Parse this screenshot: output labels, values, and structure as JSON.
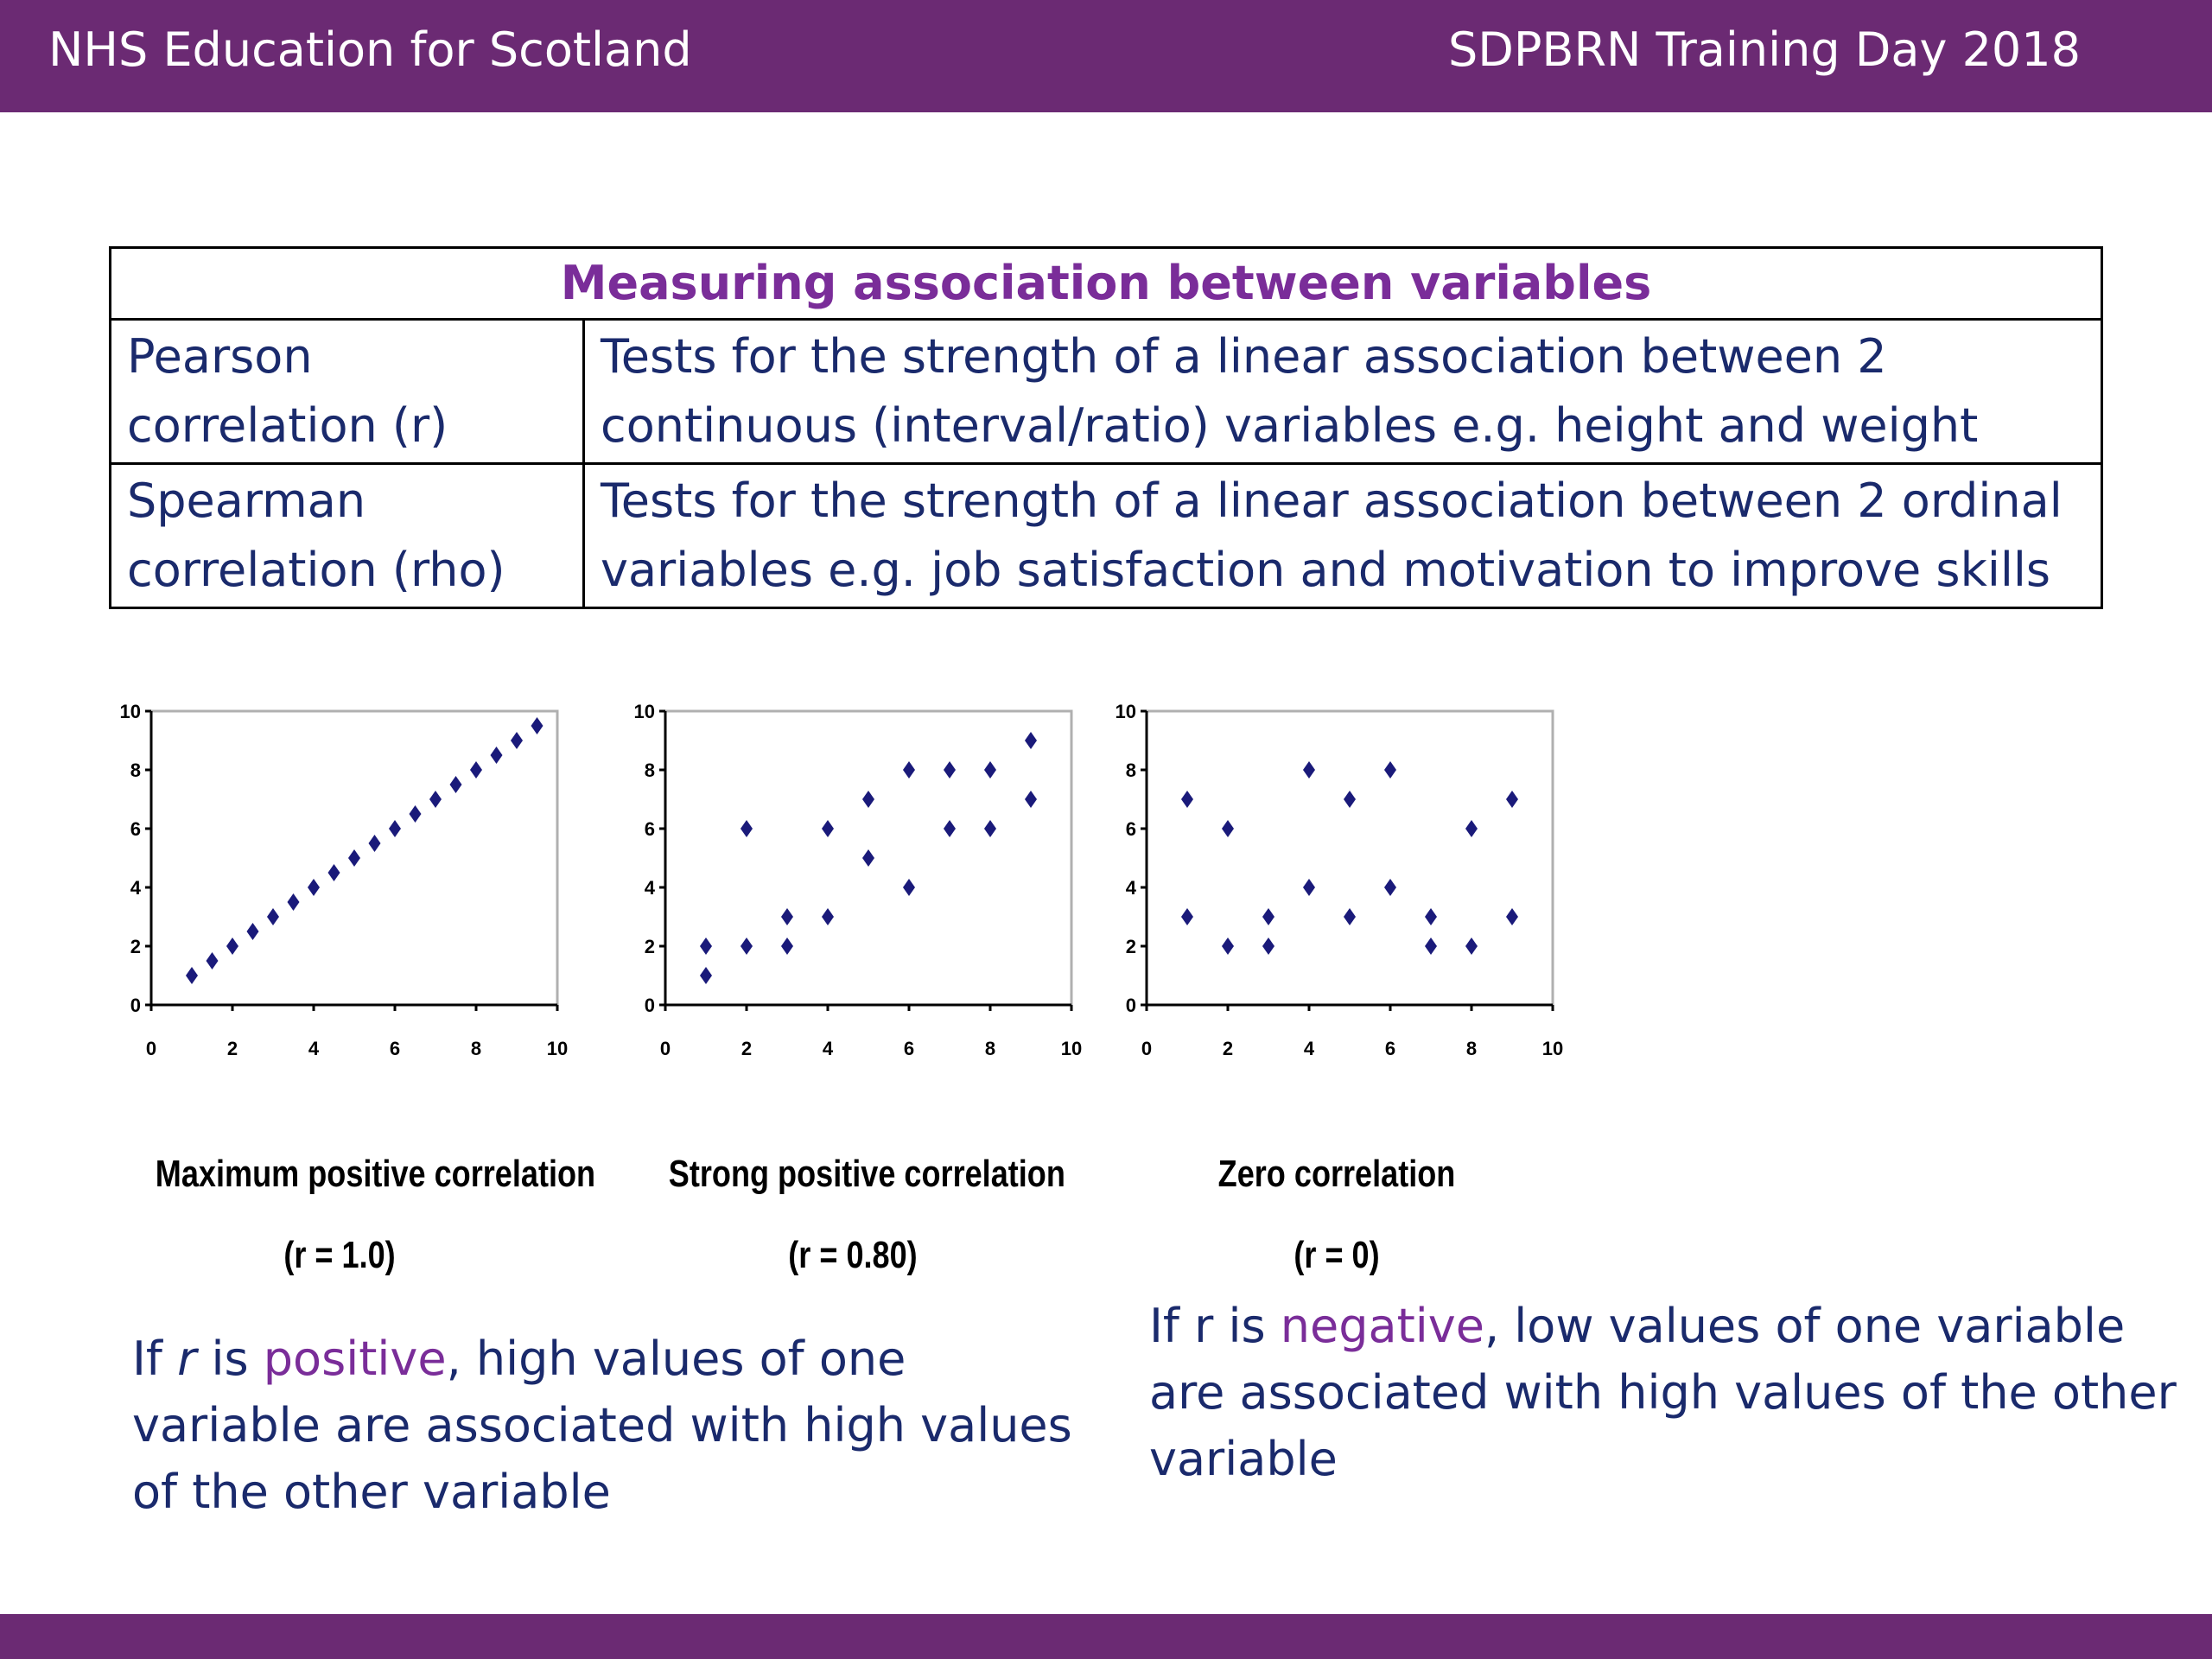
{
  "header": {
    "org": "NHS Education for Scotland",
    "event": "SDPBRN Training Day 2018"
  },
  "table": {
    "title": "Measuring association between variables",
    "rows": [
      {
        "name": "Pearson correlation  (r)",
        "description": "Tests for the strength of a linear association between 2 continuous (interval/ratio) variables  e.g. height and weight"
      },
      {
        "name": "Spearman correlation (rho)",
        "description": "Tests for the strength of a linear association between 2 ordinal variables e.g. job satisfaction and  motivation to improve skills"
      }
    ]
  },
  "chart_data": [
    {
      "type": "scatter",
      "title": "Maximum positive correlation",
      "subtitle": "(r = 1.0)",
      "xlim": [
        0,
        10
      ],
      "ylim": [
        0,
        10
      ],
      "xticks": [
        "0",
        "2",
        "4",
        "6",
        "8",
        "10"
      ],
      "yticks": [
        "0",
        "2",
        "4",
        "6",
        "8",
        "10"
      ],
      "marker_color": "#1a1a7a",
      "points": [
        [
          1,
          1
        ],
        [
          1.5,
          1.5
        ],
        [
          2,
          2
        ],
        [
          2.5,
          2.5
        ],
        [
          3,
          3
        ],
        [
          3.5,
          3.5
        ],
        [
          4,
          4
        ],
        [
          4.5,
          4.5
        ],
        [
          5,
          5
        ],
        [
          5.5,
          5.5
        ],
        [
          6,
          6
        ],
        [
          6.5,
          6.5
        ],
        [
          7,
          7
        ],
        [
          7.5,
          7.5
        ],
        [
          8,
          8
        ],
        [
          8.5,
          8.5
        ],
        [
          9,
          9
        ],
        [
          9.5,
          9.5
        ]
      ]
    },
    {
      "type": "scatter",
      "title": "Strong positive correlation",
      "subtitle": "(r = 0.80)",
      "xlim": [
        0,
        10
      ],
      "ylim": [
        0,
        10
      ],
      "xticks": [
        "0",
        "2",
        "4",
        "6",
        "8",
        "10"
      ],
      "yticks": [
        "0",
        "2",
        "4",
        "6",
        "8",
        "10"
      ],
      "marker_color": "#1a1a7a",
      "points": [
        [
          1,
          1
        ],
        [
          1,
          2
        ],
        [
          2,
          2
        ],
        [
          2,
          6
        ],
        [
          3,
          2
        ],
        [
          3,
          3
        ],
        [
          4,
          3
        ],
        [
          4,
          6
        ],
        [
          5,
          5
        ],
        [
          5,
          7
        ],
        [
          6,
          4
        ],
        [
          6,
          8
        ],
        [
          7,
          6
        ],
        [
          7,
          8
        ],
        [
          8,
          6
        ],
        [
          8,
          8
        ],
        [
          9,
          7
        ],
        [
          9,
          9
        ]
      ]
    },
    {
      "type": "scatter",
      "title": "Zero correlation",
      "subtitle": "(r = 0)",
      "xlim": [
        0,
        10
      ],
      "ylim": [
        0,
        10
      ],
      "xticks": [
        "0",
        "2",
        "4",
        "6",
        "8",
        "10"
      ],
      "yticks": [
        "0",
        "2",
        "4",
        "6",
        "8",
        "10"
      ],
      "marker_color": "#1a1a7a",
      "points": [
        [
          1,
          3
        ],
        [
          1,
          7
        ],
        [
          2,
          2
        ],
        [
          2,
          6
        ],
        [
          3,
          2
        ],
        [
          3,
          3
        ],
        [
          4,
          4
        ],
        [
          4,
          8
        ],
        [
          5,
          3
        ],
        [
          5,
          7
        ],
        [
          6,
          4
        ],
        [
          6,
          8
        ],
        [
          7,
          2
        ],
        [
          7,
          3
        ],
        [
          8,
          2
        ],
        [
          8,
          6
        ],
        [
          9,
          3
        ],
        [
          9,
          7
        ]
      ]
    }
  ],
  "text": {
    "positive": {
      "prefix": "If ",
      "var": "r",
      "is": " is ",
      "word": "positive",
      "rest": ", high values of one variable are associated with high values of the other variable"
    },
    "negative": {
      "prefix": "If r is ",
      "word": "negative",
      "rest": ", low values of one variable are associated with high values of the other variable"
    }
  },
  "colors": {
    "brand": "#6b2a73",
    "accent": "#7a2d99",
    "body_text": "#1a2a6c",
    "marker": "#1a1a7a"
  }
}
